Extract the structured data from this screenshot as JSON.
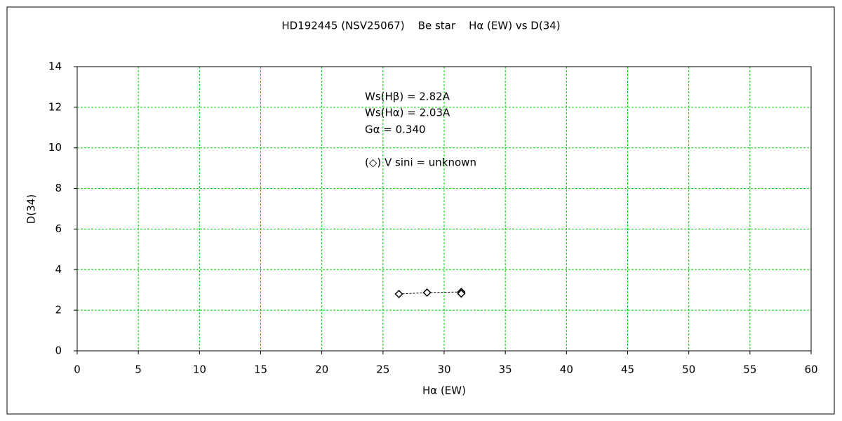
{
  "chart_data": {
    "type": "scatter",
    "title": "HD192445 (NSV25067)    Be star    Hα (EW) vs D(34)",
    "xlabel": "Hα (EW)",
    "ylabel": "D(34)",
    "annotations": [
      "Ws(Hβ) = 2.82A",
      "Ws(Hα) = 2.03A",
      "Gα = 0.340",
      "(◇) V sini = unknown"
    ],
    "series": [
      {
        "name": "D(34)",
        "color": "#000000",
        "x": [
          26.3,
          28.6,
          31.4,
          31.4
        ],
        "values": [
          2.8,
          2.87,
          2.9,
          2.82
        ]
      }
    ],
    "xlim": [
      0,
      60
    ],
    "xticks": [
      0,
      5,
      10,
      15,
      20,
      25,
      30,
      35,
      40,
      45,
      50,
      55,
      60
    ],
    "ylim": [
      0,
      14
    ],
    "yticks": [
      0,
      2,
      4,
      6,
      8,
      10,
      12,
      14
    ],
    "grid": true,
    "grid_color": "#00cc00"
  }
}
